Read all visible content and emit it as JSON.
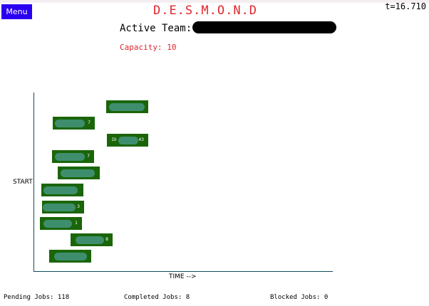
{
  "header": {
    "menu_label": "Menu",
    "title": "D.E.S.M.O.N.D",
    "clock": "t=16.710",
    "team_label": "Active Team:",
    "capacity": "Capacity: 10"
  },
  "chart": {
    "y_label": "START",
    "x_label": "TIME -->"
  },
  "jobs": [
    {
      "suffix": "",
      "prefix": ""
    },
    {
      "suffix": "7",
      "prefix": ""
    },
    {
      "suffix": "43",
      "prefix": "DI"
    },
    {
      "suffix": "7",
      "prefix": ""
    },
    {
      "suffix": "",
      "prefix": ""
    },
    {
      "suffix": "",
      "prefix": ""
    },
    {
      "suffix": "3",
      "prefix": ""
    },
    {
      "suffix": "1",
      "prefix": ""
    },
    {
      "suffix": "8",
      "prefix": ""
    },
    {
      "suffix": "",
      "prefix": ""
    }
  ],
  "footer": {
    "pending": "Pending Jobs: 118",
    "completed": "Completed Jobs: 8",
    "blocked": "Blocked Jobs: 0"
  },
  "colors": {
    "accent": "#e0262b",
    "menu": "#2a00f0",
    "job_bar": "#1a6508",
    "axis": "#0d4e5a"
  }
}
